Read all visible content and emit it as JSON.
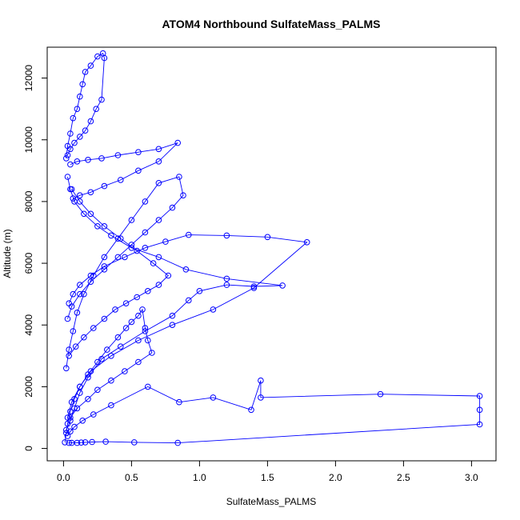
{
  "chart_data": {
    "type": "line",
    "title": "ATOM4 Northbound SulfateMass_PALMS",
    "xlabel": "SulfateMass_PALMS",
    "ylabel": "Altitude (m)",
    "xlim": [
      0,
      3.1
    ],
    "ylim": [
      0,
      13000
    ],
    "xticks": [
      "0.0",
      "0.5",
      "1.0",
      "1.5",
      "2.0",
      "2.5",
      "3.0"
    ],
    "xtick_values": [
      0,
      0.5,
      1.0,
      1.5,
      2.0,
      2.5,
      3.0
    ],
    "yticks": [
      "0",
      "2000",
      "4000",
      "6000",
      "8000",
      "10000",
      "12000"
    ],
    "ytick_values": [
      0,
      2000,
      4000,
      6000,
      8000,
      10000,
      12000
    ],
    "markers": "open-circle",
    "colors": {
      "series": "#0000ff",
      "axis": "#000000",
      "background": "#ffffff"
    },
    "series": [
      {
        "x": [
          0.04,
          0.06,
          0.1,
          0.13,
          0.16,
          0.21,
          0.31,
          0.52,
          0.84,
          3.06,
          3.06,
          3.06,
          2.33,
          1.45,
          1.45,
          1.38,
          1.1,
          0.85,
          0.62,
          0.35,
          0.22,
          0.14,
          0.08,
          0.05,
          0.03
        ],
        "y": [
          180,
          180,
          180,
          190,
          200,
          210,
          220,
          200,
          180,
          780,
          1250,
          1700,
          1760,
          1650,
          2200,
          1250,
          1650,
          1500,
          2000,
          1400,
          1100,
          900,
          700,
          550,
          400
        ]
      },
      {
        "x": [
          0.02,
          0.05,
          0.08,
          0.12,
          0.18,
          0.28,
          0.42,
          0.6,
          0.8,
          0.92,
          1.0,
          1.2,
          1.4,
          1.61,
          1.2,
          0.9,
          0.7,
          0.5,
          0.35,
          0.25,
          0.15,
          0.08,
          0.05,
          0.03
        ],
        "y": [
          600,
          900,
          1300,
          1800,
          2300,
          2900,
          3300,
          3800,
          4300,
          4800,
          5100,
          5300,
          5250,
          5280,
          5500,
          5800,
          6200,
          6500,
          6900,
          7200,
          7600,
          8000,
          8400,
          8800
        ]
      },
      {
        "x": [
          0.03,
          0.06,
          0.12,
          0.2,
          0.35,
          0.55,
          0.8,
          1.1,
          1.4,
          1.79,
          1.5,
          1.2,
          0.92,
          0.75,
          0.6,
          0.45,
          0.3,
          0.2,
          0.12,
          0.07,
          0.04
        ],
        "y": [
          1000,
          1500,
          2000,
          2500,
          3000,
          3500,
          4000,
          4500,
          5200,
          6680,
          6850,
          6900,
          6920,
          6700,
          6500,
          6200,
          5900,
          5600,
          5300,
          5000,
          4700
        ]
      },
      {
        "x": [
          0.02,
          0.04,
          0.07,
          0.1,
          0.15,
          0.22,
          0.3,
          0.4,
          0.5,
          0.6,
          0.7,
          0.85,
          0.88,
          0.8,
          0.7,
          0.6,
          0.5,
          0.4,
          0.3,
          0.2,
          0.12,
          0.06,
          0.03
        ],
        "y": [
          2600,
          3200,
          3800,
          4400,
          5000,
          5600,
          6200,
          6800,
          7400,
          8000,
          8600,
          8800,
          8200,
          7800,
          7400,
          7000,
          6600,
          6200,
          5800,
          5400,
          5000,
          4600,
          4200
        ]
      },
      {
        "x": [
          0.05,
          0.1,
          0.18,
          0.28,
          0.4,
          0.55,
          0.7,
          0.84,
          0.7,
          0.55,
          0.42,
          0.3,
          0.2,
          0.12,
          0.07
        ],
        "y": [
          9200,
          9300,
          9350,
          9400,
          9500,
          9600,
          9700,
          9900,
          9300,
          9000,
          8700,
          8500,
          8300,
          8200,
          8100
        ]
      },
      {
        "x": [
          0.02,
          0.03,
          0.05,
          0.07,
          0.1,
          0.12,
          0.14,
          0.16,
          0.2,
          0.25,
          0.29,
          0.3,
          0.28,
          0.24,
          0.2,
          0.16,
          0.12,
          0.08,
          0.05,
          0.03
        ],
        "y": [
          9400,
          9800,
          10200,
          10700,
          11000,
          11400,
          11800,
          12200,
          12400,
          12700,
          12800,
          12650,
          11300,
          11000,
          10600,
          10300,
          10100,
          9900,
          9700,
          9500
        ]
      },
      {
        "x": [
          0.01,
          0.02,
          0.03,
          0.05,
          0.08,
          0.12,
          0.18,
          0.25,
          0.32,
          0.4,
          0.46,
          0.5,
          0.55,
          0.58,
          0.6,
          0.62,
          0.65,
          0.55,
          0.45,
          0.35,
          0.25,
          0.18,
          0.1,
          0.05
        ],
        "y": [
          200,
          500,
          800,
          1200,
          1600,
          2000,
          2400,
          2800,
          3200,
          3600,
          3900,
          4100,
          4300,
          4500,
          3900,
          3500,
          3100,
          2800,
          2500,
          2200,
          1900,
          1600,
          1300,
          1000
        ]
      },
      {
        "x": [
          0.04,
          0.09,
          0.15,
          0.22,
          0.3,
          0.38,
          0.46,
          0.54,
          0.62,
          0.7,
          0.77,
          0.66,
          0.54,
          0.42,
          0.3,
          0.2,
          0.12,
          0.06
        ],
        "y": [
          3000,
          3300,
          3600,
          3900,
          4200,
          4500,
          4700,
          4900,
          5100,
          5300,
          5600,
          6000,
          6400,
          6800,
          7200,
          7600,
          8000,
          8400
        ]
      }
    ]
  }
}
